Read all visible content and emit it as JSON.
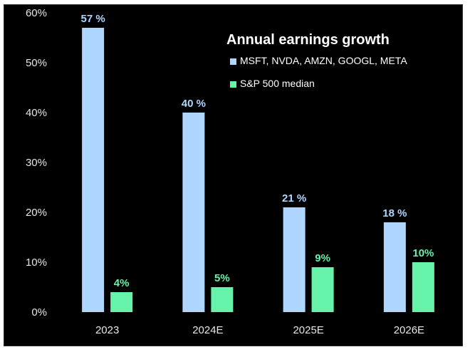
{
  "chart_data": {
    "type": "bar",
    "title": "Annual earnings growth",
    "xlabel": "",
    "ylabel": "",
    "categories": [
      "2023",
      "2024E",
      "2025E",
      "2026E"
    ],
    "ylim": [
      0,
      60
    ],
    "yticks": [
      "0%",
      "10%",
      "20%",
      "30%",
      "40%",
      "50%",
      "60%"
    ],
    "grid": false,
    "legend_position": "top-right",
    "series": [
      {
        "name": "MSFT, NVDA, AMZN, GOOGL, META",
        "values": [
          57,
          40,
          21,
          18
        ],
        "labels": [
          "57 %",
          "40 %",
          "21 %",
          "18 %"
        ],
        "color": "#aed6ff"
      },
      {
        "name": "S&P 500 median",
        "values": [
          4,
          5,
          9,
          10
        ],
        "labels": [
          "4%",
          "5%",
          "9%",
          "10%"
        ],
        "color": "#66f2a8"
      }
    ],
    "background": "#000000"
  }
}
